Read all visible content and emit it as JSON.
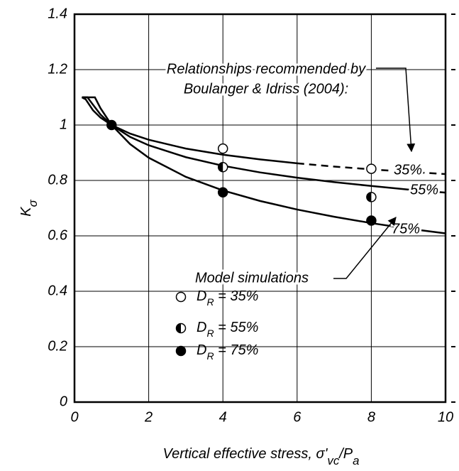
{
  "chart_data": {
    "type": "line",
    "x_label": [
      {
        "text": "Vertical effective stress, σ'"
      },
      {
        "text": "vc",
        "sub": true
      },
      {
        "text": "/P"
      },
      {
        "text": "a",
        "sub": true
      }
    ],
    "y_label": [
      {
        "text": "K"
      },
      {
        "text": "σ",
        "sub": true
      }
    ],
    "xlim": [
      0,
      10
    ],
    "xticks": [
      0,
      2,
      4,
      6,
      8,
      10
    ],
    "ylim": [
      0,
      1.4
    ],
    "yticks": [
      0,
      0.2,
      0.4,
      0.6,
      0.8,
      1,
      1.2,
      1.4
    ],
    "grid": true,
    "annotations": [
      "Relationships recommended by",
      "Boulanger & Idriss (2004):",
      "Model simulations"
    ],
    "series": [
      {
        "name": "35%",
        "color": "#000000",
        "x": [
          0.2,
          0.3,
          0.5,
          0.7,
          1,
          1.5,
          2,
          3,
          4,
          5,
          6
        ],
        "values": [
          1.1,
          1.093,
          1.053,
          1.027,
          1,
          0.969,
          0.947,
          0.915,
          0.893,
          0.876,
          0.862
        ],
        "dashed_x": [
          6,
          7,
          8,
          9,
          10
        ],
        "dashed_values": [
          0.862,
          0.85,
          0.84,
          0.831,
          0.823
        ]
      },
      {
        "name": "55%",
        "color": "#000000",
        "x": [
          0.2,
          0.35,
          0.5,
          0.7,
          1,
          1.5,
          2,
          3,
          4,
          5,
          6,
          7,
          8,
          9,
          10
        ],
        "values": [
          1.1,
          1.1,
          1.073,
          1.038,
          1,
          0.957,
          0.927,
          0.884,
          0.853,
          0.829,
          0.81,
          0.794,
          0.78,
          0.767,
          0.756
        ]
      },
      {
        "name": "75%",
        "color": "#000000",
        "x": [
          0.2,
          0.55,
          0.7,
          1,
          1.5,
          2,
          3,
          4,
          5,
          6,
          7,
          8,
          9,
          10
        ],
        "values": [
          1.1,
          1.1,
          1.061,
          1,
          0.931,
          0.882,
          0.813,
          0.764,
          0.726,
          0.695,
          0.669,
          0.646,
          0.626,
          0.609
        ]
      }
    ],
    "points": [
      {
        "name": "DR = 35%",
        "fill": "open",
        "x": [
          4,
          8
        ],
        "values": [
          0.915,
          0.842
        ]
      },
      {
        "name": "DR = 55%",
        "fill": "half",
        "x": [
          4,
          8
        ],
        "values": [
          0.848,
          0.74
        ]
      },
      {
        "name": "DR = 75%",
        "fill": "full",
        "x": [
          1,
          4,
          8
        ],
        "values": [
          1,
          0.757,
          0.655
        ]
      }
    ]
  }
}
